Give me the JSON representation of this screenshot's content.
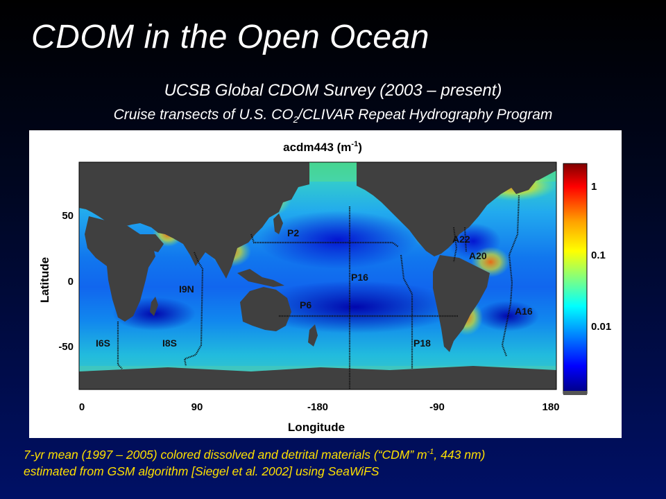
{
  "slide": {
    "title": "CDOM in the Open Ocean",
    "subtitle": "UCSB Global CDOM Survey (2003 – present)",
    "subtitle2_prefix": "Cruise transects of U.S. CO",
    "subtitle2_sub": "2",
    "subtitle2_suffix": "/CLIVAR Repeat Hydrography Program"
  },
  "figure": {
    "title_main": "acdm443 (m",
    "title_sup": "-1",
    "title_end": ")",
    "xlabel": "Longitude",
    "ylabel": "Latitude",
    "x_ticks": [
      "0",
      "90",
      "-180",
      "-90",
      "180"
    ],
    "y_ticks": [
      "50",
      "0",
      "-50"
    ],
    "colorbar_ticks": [
      "1",
      "0.1",
      "0.01"
    ],
    "colorbar_scale": "log",
    "colorbar_colors": [
      "#7f0000",
      "#ff0000",
      "#ffa000",
      "#ffff00",
      "#80ff80",
      "#00ffff",
      "#0080ff",
      "#0000ff",
      "#00007f"
    ],
    "land_color": "#404040",
    "transects": [
      {
        "label": "P2"
      },
      {
        "label": "P16"
      },
      {
        "label": "P6"
      },
      {
        "label": "P18"
      },
      {
        "label": "A22"
      },
      {
        "label": "A20"
      },
      {
        "label": "A16"
      },
      {
        "label": "I9N"
      },
      {
        "label": "I6S"
      },
      {
        "label": "I8S"
      }
    ]
  },
  "caption": {
    "line1_a": "7-yr mean (1997 – 2005) colored dissolved and detrital materials (“CDM” m",
    "line1_sup": "-1",
    "line1_b": ", 443 nm)",
    "line2": "estimated from GSM algorithm [Siegel et al. 2002] using SeaWiFS"
  }
}
